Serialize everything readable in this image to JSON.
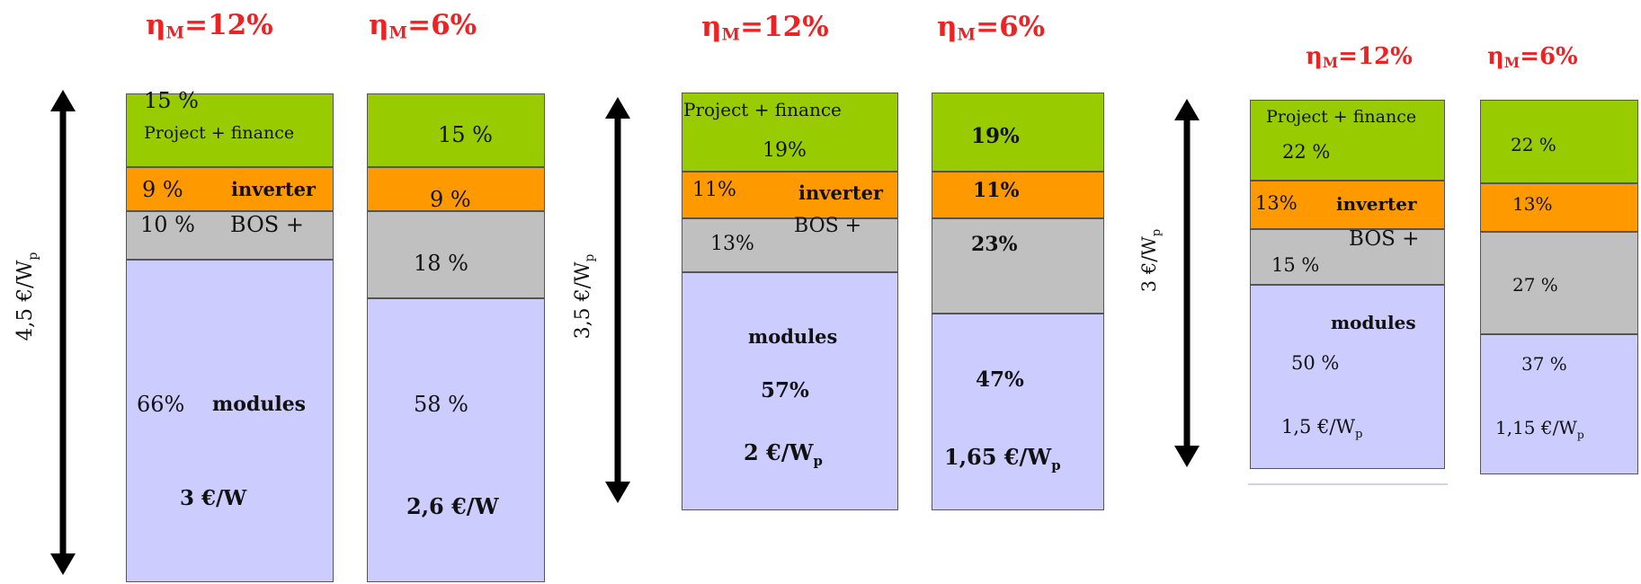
{
  "chart_data": [
    {
      "type": "bar",
      "stacked": true,
      "cost_label": "4,5 €/W",
      "cost_sub": "p",
      "categories": [
        "η_M=12%",
        "η_M=6%"
      ],
      "series": [
        {
          "name": "modules",
          "values": [
            66,
            58
          ],
          "labels": [
            "66%",
            "58 %"
          ],
          "value_labels": [
            "3 €/W",
            "2,6 €/W"
          ]
        },
        {
          "name": "BOS +",
          "values": [
            10,
            18
          ],
          "labels": [
            "10 %",
            "18 %"
          ]
        },
        {
          "name": "inverter",
          "values": [
            9,
            9
          ],
          "labels": [
            "9 %",
            "9 %"
          ]
        },
        {
          "name": "Project + finance",
          "values": [
            15,
            15
          ],
          "labels": [
            "15 %",
            "15 %"
          ]
        }
      ]
    },
    {
      "type": "bar",
      "stacked": true,
      "cost_label": "3,5 €/W",
      "cost_sub": "p",
      "categories": [
        "η_M=12%",
        "η_M=6%"
      ],
      "series": [
        {
          "name": "modules",
          "values": [
            57,
            47
          ],
          "labels": [
            "57%",
            "47%"
          ],
          "value_labels": [
            "2 €/W",
            "1,65 €/W"
          ]
        },
        {
          "name": "BOS +",
          "values": [
            13,
            23
          ],
          "labels": [
            "13%",
            "23%"
          ]
        },
        {
          "name": "inverter",
          "values": [
            11,
            11
          ],
          "labels": [
            "11%",
            "11%"
          ]
        },
        {
          "name": "Project + finance",
          "values": [
            19,
            19
          ],
          "labels": [
            "19%",
            "19%"
          ]
        }
      ]
    },
    {
      "type": "bar",
      "stacked": true,
      "cost_label": "3 €/W",
      "cost_sub": "p",
      "categories": [
        "η_M=12%",
        "η_M=6%"
      ],
      "series": [
        {
          "name": "modules",
          "values": [
            50,
            37
          ],
          "labels": [
            "50 %",
            "37 %"
          ],
          "value_labels": [
            "1,5 €/W",
            "1,15 €/W"
          ]
        },
        {
          "name": "BOS +",
          "values": [
            15,
            27
          ],
          "labels": [
            "15 %",
            "27 %"
          ]
        },
        {
          "name": "inverter",
          "values": [
            13,
            13
          ],
          "labels": [
            "13%",
            "13%"
          ]
        },
        {
          "name": "Project + finance",
          "values": [
            22,
            22
          ],
          "labels": [
            "22 %",
            "22 %"
          ]
        }
      ]
    }
  ],
  "eta_main": "η",
  "eta_sub": "M",
  "eta_values": [
    "=12%",
    "=6%"
  ],
  "value_sub": "p",
  "colors": {
    "modules": "#ccccff",
    "bos": "#c0c0c0",
    "inverter": "#ff9900",
    "project": "#99cc00",
    "eta": "#ee2222"
  }
}
